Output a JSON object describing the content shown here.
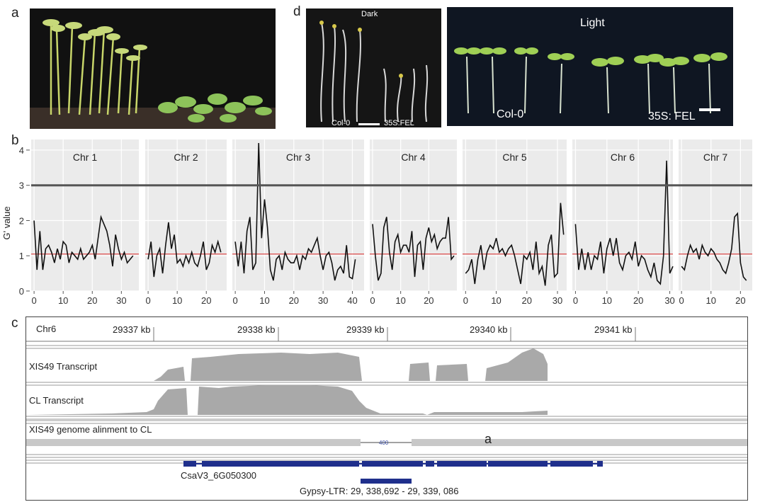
{
  "panels": {
    "a": "a",
    "b": "b",
    "c": "c",
    "d": "d"
  },
  "photo_d": {
    "dark_label": "Dark",
    "dark_col": "Col-0",
    "dark_fel": "35S:FEL",
    "light_label": "Light",
    "light_col": "Col-0",
    "light_fel": "35S: FEL"
  },
  "chart_data": {
    "type": "line",
    "ylabel": "G' value",
    "ylim": [
      0,
      4.3
    ],
    "yticks": [
      0,
      1,
      2,
      3,
      4
    ],
    "threshold_black": 3,
    "threshold_red": 1.05,
    "grid": true,
    "facets": [
      {
        "name": "Chr 1",
        "xlim": [
          -1,
          36
        ],
        "xticks": [
          0,
          10,
          20,
          30
        ],
        "x": [
          0,
          1,
          2,
          3,
          4,
          5,
          6,
          7,
          8,
          9,
          10,
          11,
          12,
          13,
          14,
          15,
          16,
          17,
          18,
          19,
          20,
          21,
          22,
          23,
          24,
          25,
          26,
          27,
          28,
          29,
          30,
          31,
          32,
          33,
          34
        ],
        "y": [
          2.0,
          0.6,
          1.7,
          0.6,
          1.2,
          1.3,
          1.1,
          0.8,
          1.2,
          0.9,
          1.4,
          1.3,
          0.8,
          1.1,
          1.0,
          0.9,
          1.2,
          0.9,
          1.0,
          1.1,
          1.3,
          0.9,
          1.5,
          2.1,
          1.9,
          1.7,
          1.3,
          0.7,
          1.6,
          1.2,
          0.9,
          1.1,
          0.8,
          0.9,
          1.0
        ]
      },
      {
        "name": "Chr 2",
        "xlim": [
          -1,
          27
        ],
        "xticks": [
          0,
          10,
          20
        ],
        "x": [
          0,
          1,
          2,
          3,
          4,
          5,
          6,
          7,
          8,
          9,
          10,
          11,
          12,
          13,
          14,
          15,
          16,
          17,
          18,
          19,
          20,
          21,
          22,
          23,
          24,
          25
        ],
        "y": [
          0.9,
          1.4,
          0.4,
          1.0,
          1.2,
          0.5,
          1.3,
          1.95,
          1.2,
          1.6,
          0.8,
          0.9,
          0.7,
          1.0,
          0.8,
          1.1,
          0.8,
          0.7,
          1.0,
          1.4,
          0.6,
          0.8,
          1.3,
          1.1,
          1.4,
          1.1
        ]
      },
      {
        "name": "Chr 3",
        "xlim": [
          -1,
          44
        ],
        "xticks": [
          0,
          10,
          20,
          30,
          40
        ],
        "x": [
          0,
          1,
          2,
          3,
          4,
          5,
          6,
          7,
          8,
          9,
          10,
          11,
          12,
          13,
          14,
          15,
          16,
          17,
          18,
          19,
          20,
          21,
          22,
          23,
          24,
          25,
          26,
          27,
          28,
          29,
          30,
          31,
          32,
          33,
          34,
          35,
          36,
          37,
          38,
          39,
          40,
          41
        ],
        "y": [
          1.4,
          0.7,
          1.4,
          0.5,
          1.7,
          2.1,
          0.6,
          0.8,
          4.2,
          1.5,
          2.6,
          1.8,
          0.6,
          0.3,
          0.9,
          1.0,
          0.6,
          1.1,
          0.9,
          0.8,
          0.8,
          1.0,
          0.6,
          1.0,
          0.9,
          1.2,
          1.1,
          1.3,
          1.5,
          1.0,
          0.6,
          1.0,
          1.1,
          0.8,
          0.3,
          0.6,
          0.7,
          0.5,
          1.3,
          0.4,
          0.35,
          0.9
        ]
      },
      {
        "name": "Chr 4",
        "xlim": [
          -1,
          30
        ],
        "xticks": [
          0,
          10,
          20
        ],
        "x": [
          0,
          1,
          2,
          3,
          4,
          5,
          6,
          7,
          8,
          9,
          10,
          11,
          12,
          13,
          14,
          15,
          16,
          17,
          18,
          19,
          20,
          21,
          22,
          23,
          24,
          25,
          26,
          27,
          28,
          29
        ],
        "y": [
          1.9,
          1.0,
          0.3,
          0.5,
          1.8,
          2.1,
          1.1,
          0.6,
          1.4,
          1.6,
          1.1,
          1.3,
          1.3,
          1.1,
          1.7,
          0.4,
          1.3,
          1.4,
          0.6,
          1.5,
          1.8,
          1.4,
          1.6,
          1.2,
          1.4,
          1.5,
          1.5,
          2.1,
          0.9,
          1.0
        ]
      },
      {
        "name": "Chr 5",
        "xlim": [
          -1,
          33
        ],
        "xticks": [
          0,
          10,
          20,
          30
        ],
        "x": [
          0,
          1,
          2,
          3,
          4,
          5,
          6,
          7,
          8,
          9,
          10,
          11,
          12,
          13,
          14,
          15,
          16,
          17,
          18,
          19,
          20,
          21,
          22,
          23,
          24,
          25,
          26,
          27,
          28,
          29,
          30,
          31,
          32
        ],
        "y": [
          0.5,
          0.6,
          0.9,
          0.2,
          0.9,
          1.3,
          0.6,
          1.1,
          1.3,
          1.2,
          1.5,
          1.1,
          1.2,
          1.0,
          1.2,
          1.3,
          1.0,
          0.6,
          0.2,
          1.0,
          0.9,
          1.1,
          0.6,
          1.4,
          0.5,
          0.7,
          0.15,
          1.3,
          1.6,
          0.4,
          0.5,
          2.5,
          1.6
        ]
      },
      {
        "name": "Chr 6",
        "xlim": [
          -1,
          31
        ],
        "xticks": [
          0,
          10,
          20,
          30
        ],
        "x": [
          0,
          1,
          2,
          3,
          4,
          5,
          6,
          7,
          8,
          9,
          10,
          11,
          12,
          13,
          14,
          15,
          16,
          17,
          18,
          19,
          20,
          21,
          22,
          23,
          24,
          25,
          26,
          27,
          28,
          29,
          30,
          31
        ],
        "y": [
          1.9,
          0.6,
          1.2,
          0.6,
          1.1,
          0.6,
          1.0,
          0.9,
          1.4,
          0.5,
          1.2,
          1.5,
          1.0,
          1.5,
          0.8,
          0.6,
          1.0,
          1.1,
          0.9,
          1.4,
          0.7,
          1.0,
          0.9,
          0.6,
          0.4,
          0.8,
          0.3,
          0.2,
          1.0,
          3.7,
          0.5,
          0.7
        ]
      },
      {
        "name": "Chr 7",
        "xlim": [
          -1,
          24
        ],
        "xticks": [
          0,
          10,
          20
        ],
        "x": [
          0,
          1,
          2,
          3,
          4,
          5,
          6,
          7,
          8,
          9,
          10,
          11,
          12,
          13,
          14,
          15,
          16,
          17,
          18,
          19,
          20,
          21,
          22
        ],
        "y": [
          0.7,
          0.6,
          1.0,
          1.3,
          1.1,
          1.2,
          0.9,
          1.3,
          1.1,
          1.0,
          1.2,
          1.1,
          0.9,
          0.8,
          0.6,
          0.5,
          0.8,
          1.2,
          2.1,
          2.2,
          0.8,
          0.4,
          0.3
        ]
      }
    ]
  },
  "igv": {
    "chrom": "Chr6",
    "ruler_ticks": [
      "29337 kb",
      "29338 kb",
      "29339 kb",
      "29340 kb",
      "29341 kb"
    ],
    "tracks": {
      "xis49": "XIS49 Transcript",
      "cl": "CL Transcript",
      "alignment": "XIS49 genome alinment to CL",
      "gap_label": "400",
      "mark": "a"
    },
    "gene_name": "CsaV3_6G050300",
    "ltr_label": "Gypsy-LTR: 29, 338,692 - 29, 339, 086",
    "colors": {
      "coverage": "#a9a9a9",
      "gene": "#1f2f8c",
      "threshold_red": "#e06666"
    }
  }
}
